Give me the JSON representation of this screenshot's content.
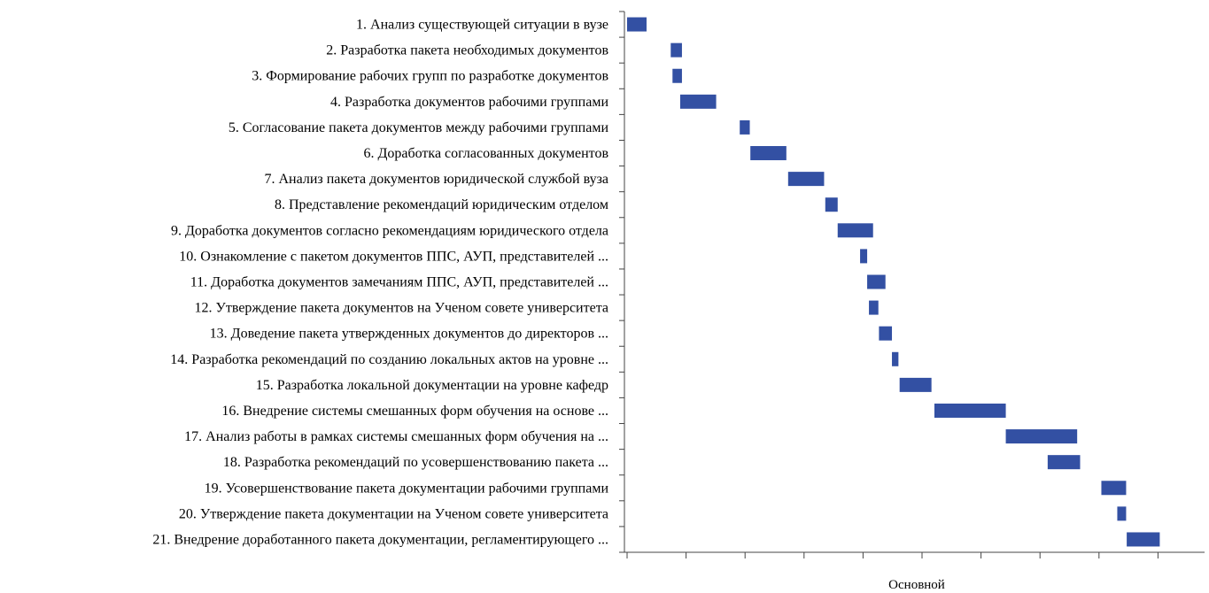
{
  "chart_data": {
    "type": "gantt",
    "bar_color": "#3350a3",
    "legend": "Основной",
    "x_ticks": [
      0,
      1,
      2,
      3,
      4,
      5,
      6,
      7,
      8,
      9
    ],
    "tasks": [
      {
        "label": "1. Анализ существующей ситуации в вузе",
        "start": 0.0,
        "end": 0.33
      },
      {
        "label": "2. Разработка пакета необходимых документов",
        "start": 0.74,
        "end": 0.93
      },
      {
        "label": "3. Формирование рабочих групп по разработке документов",
        "start": 0.77,
        "end": 0.93
      },
      {
        "label": "4. Разработка документов рабочими группами",
        "start": 0.9,
        "end": 1.51
      },
      {
        "label": "5. Согласование пакета документов между рабочими группами",
        "start": 1.91,
        "end": 2.08
      },
      {
        "label": "6. Доработка согласованных документов",
        "start": 2.09,
        "end": 2.7
      },
      {
        "label": "7. Анализ пакета документов юридической службой вуза",
        "start": 2.73,
        "end": 3.34
      },
      {
        "label": "8. Представление рекомендаций юридическим отделом",
        "start": 3.36,
        "end": 3.57
      },
      {
        "label": "9. Доработка документов согласно рекомендациям юридического отдела",
        "start": 3.57,
        "end": 4.17
      },
      {
        "label": "10. Ознакомление с пакетом документов ППС, АУП, представителей ...",
        "start": 3.95,
        "end": 4.07
      },
      {
        "label": "11. Доработка документов замечаниям ППС, АУП, представителей ...",
        "start": 4.07,
        "end": 4.38
      },
      {
        "label": "12. Утверждение пакета документов на Ученом совете университета",
        "start": 4.1,
        "end": 4.26
      },
      {
        "label": "13. Доведение пакета утвержденных документов до директоров ...",
        "start": 4.27,
        "end": 4.49
      },
      {
        "label": "14. Разработка рекомендаций по созданию локальных актов на уровне ...",
        "start": 4.49,
        "end": 4.6
      },
      {
        "label": "15. Разработка локальной документации на уровне кафедр",
        "start": 4.62,
        "end": 5.16
      },
      {
        "label": "16. Внедрение системы смешанных форм обучения на основе ...",
        "start": 5.21,
        "end": 6.42
      },
      {
        "label": "17. Анализ работы в рамках системы смешанных форм обучения на ...",
        "start": 6.42,
        "end": 7.63
      },
      {
        "label": "18. Разработка рекомендаций по усовершенствованию пакета ...",
        "start": 7.13,
        "end": 7.68
      },
      {
        "label": "19. Усовершенствование пакета документации рабочими группами",
        "start": 8.04,
        "end": 8.46
      },
      {
        "label": "20. Утверждение пакета документации на Ученом совете университета",
        "start": 8.31,
        "end": 8.46
      },
      {
        "label": "21. Внедрение доработанного пакета документации, регламентирующего ...",
        "start": 8.47,
        "end": 9.03
      }
    ]
  }
}
